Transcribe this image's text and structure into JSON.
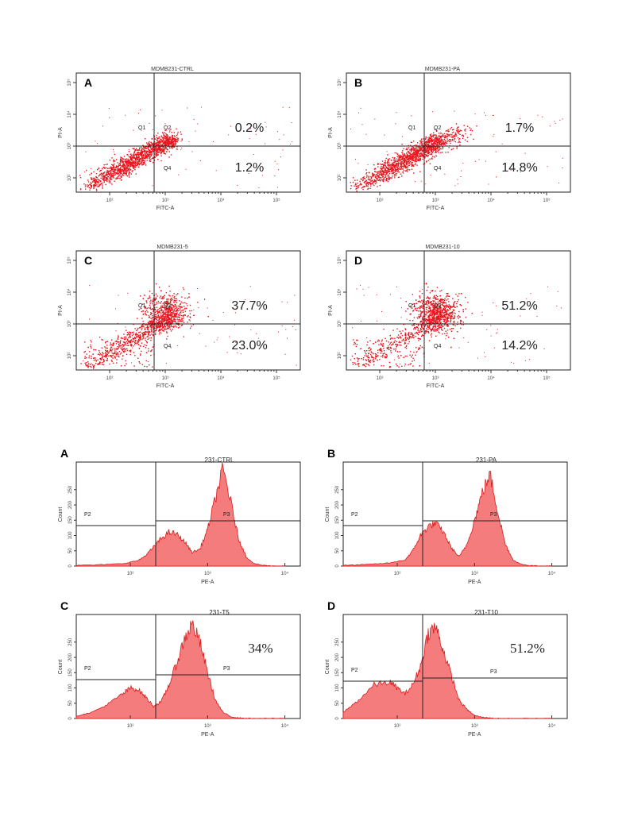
{
  "colors": {
    "data": "#e8141d",
    "fill": "#f47c7c",
    "fillStroke": "#d81e1e",
    "axis": "#333333"
  },
  "scatter_axis": {
    "xlabel": "FITC-A",
    "ylabel": "PI-A",
    "ticks": [
      "10²",
      "10³",
      "10⁴",
      "10⁵"
    ],
    "q_labels": [
      "Q1",
      "Q2",
      "Q4"
    ]
  },
  "hist_axis": {
    "xlabel": "PE-A",
    "ylabel": "Count",
    "xticks": [
      "10²",
      "10³",
      "10⁴"
    ],
    "yticks": [
      "0",
      "50",
      "100",
      "150",
      "200",
      "250"
    ],
    "gate_labels": [
      "P2",
      "P3"
    ]
  },
  "chart_data": [
    {
      "type": "scatter",
      "panel": "A",
      "title": "MDMB231-CTRL",
      "quadrant_values": {
        "Q2": "0.2%",
        "Q4": "1.2%"
      },
      "xscale": "log",
      "yscale": "log",
      "populations": [
        {
          "name": "",
          "shape": "diagonal-low",
          "intensity": 1.0
        }
      ]
    },
    {
      "type": "scatter",
      "panel": "B",
      "title": "MDMB231-PA",
      "quadrant_values": {
        "Q2": "1.7%",
        "Q4": "14.8%"
      },
      "xscale": "log",
      "yscale": "log",
      "populations": [
        {
          "name": "",
          "shape": "diagonal-low-extended",
          "intensity": 1.0
        }
      ]
    },
    {
      "type": "scatter",
      "panel": "C",
      "title": "MDMB231-5",
      "quadrant_values": {
        "Q2": "37.7%",
        "Q4": "23.0%"
      },
      "xscale": "log",
      "yscale": "log",
      "populations": [
        {
          "name": "",
          "shape": "diagonal-to-Q2",
          "intensity": 1.0
        }
      ]
    },
    {
      "type": "scatter",
      "panel": "D",
      "title": "MDMB231-10",
      "quadrant_values": {
        "Q2": "51.2%",
        "Q4": "14.2%"
      },
      "xscale": "log",
      "yscale": "log",
      "populations": [
        {
          "name": "",
          "shape": "diagonal-to-Q2-strong",
          "intensity": 1.0
        }
      ]
    },
    {
      "type": "area",
      "panel": "A",
      "title": "231-CTRL",
      "annotation": "",
      "x_log": [
        1.3,
        1.6,
        1.9,
        2.1,
        2.2,
        2.3,
        2.4,
        2.5,
        2.6,
        2.7,
        2.8,
        2.9,
        3.0,
        3.1,
        3.2,
        3.3,
        3.4,
        3.5,
        3.6,
        3.7,
        3.8,
        3.9,
        4.0
      ],
      "counts": [
        2,
        4,
        8,
        18,
        35,
        62,
        90,
        110,
        105,
        80,
        45,
        55,
        120,
        220,
        320,
        210,
        90,
        30,
        8,
        3,
        1,
        0,
        0
      ]
    },
    {
      "type": "area",
      "panel": "B",
      "title": "231-PA",
      "annotation": "",
      "x_log": [
        1.3,
        1.6,
        1.9,
        2.1,
        2.2,
        2.3,
        2.4,
        2.5,
        2.6,
        2.7,
        2.8,
        2.9,
        3.0,
        3.1,
        3.2,
        3.3,
        3.4,
        3.5,
        3.6,
        3.7,
        3.8,
        3.9,
        4.0
      ],
      "counts": [
        2,
        5,
        10,
        20,
        50,
        100,
        130,
        140,
        110,
        60,
        30,
        70,
        150,
        240,
        300,
        180,
        70,
        20,
        6,
        2,
        1,
        0,
        0
      ]
    },
    {
      "type": "area",
      "panel": "C",
      "title": "231-T5",
      "annotation": "34%",
      "x_log": [
        1.3,
        1.5,
        1.7,
        1.9,
        2.0,
        2.1,
        2.2,
        2.3,
        2.4,
        2.5,
        2.6,
        2.7,
        2.8,
        2.9,
        3.0,
        3.1,
        3.2,
        3.3,
        3.4,
        3.6,
        3.8,
        4.0
      ],
      "counts": [
        8,
        20,
        45,
        80,
        100,
        95,
        70,
        40,
        55,
        110,
        180,
        260,
        310,
        250,
        150,
        60,
        20,
        6,
        2,
        0,
        0,
        0
      ]
    },
    {
      "type": "area",
      "panel": "D",
      "title": "231-T10",
      "annotation": "51.2%",
      "x_log": [
        1.3,
        1.5,
        1.7,
        1.9,
        2.0,
        2.1,
        2.2,
        2.3,
        2.4,
        2.5,
        2.6,
        2.7,
        2.8,
        2.9,
        3.0,
        3.1,
        3.2,
        3.3,
        3.4,
        3.6,
        3.8,
        4.0
      ],
      "counts": [
        20,
        60,
        110,
        120,
        100,
        80,
        110,
        170,
        280,
        300,
        220,
        140,
        60,
        30,
        10,
        4,
        2,
        0,
        0,
        0,
        0,
        0
      ]
    }
  ]
}
